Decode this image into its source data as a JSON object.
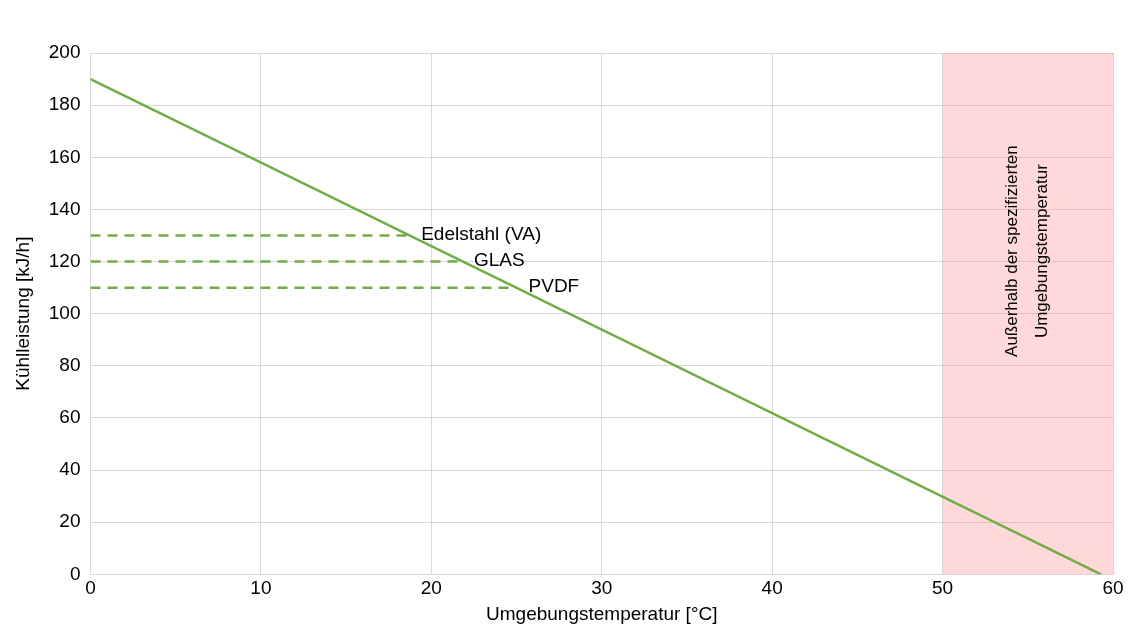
{
  "chart_data": {
    "type": "line",
    "xlabel": "Umgebungstemperatur [°C]",
    "ylabel": "Kühlleistung [kJ/h]",
    "xlim": [
      0,
      60
    ],
    "xticks": [
      0,
      10,
      20,
      30,
      40,
      50,
      60
    ],
    "ylim": [
      0,
      200
    ],
    "yticks": [
      0,
      20,
      40,
      60,
      80,
      100,
      120,
      140,
      160,
      180,
      200
    ],
    "grid": true,
    "legend": false,
    "marker": "none",
    "series": [
      {
        "color": "#70ad47",
        "x": [
          0,
          59.3
        ],
        "values": [
          190,
          0
        ],
        "line_style": "solid"
      },
      {
        "name": "Edelstahl (VA)",
        "color": "#70ad47",
        "x": [
          0,
          18.7
        ],
        "values": [
          130,
          130
        ],
        "line_style": "dashed"
      },
      {
        "name": "GLAS",
        "color": "#70ad47",
        "x": [
          0,
          21.8
        ],
        "values": [
          120,
          120
        ],
        "line_style": "dashed"
      },
      {
        "name": "PVDF",
        "color": "#70ad47",
        "x": [
          0,
          25
        ],
        "values": [
          110,
          110
        ],
        "line_style": "dashed"
      }
    ],
    "bands": [
      {
        "axis": "x",
        "from": 50,
        "to": 60,
        "label": "Außerhalb der spezifizierten Umgebungstemperatur",
        "color": "#ff8080"
      }
    ]
  }
}
